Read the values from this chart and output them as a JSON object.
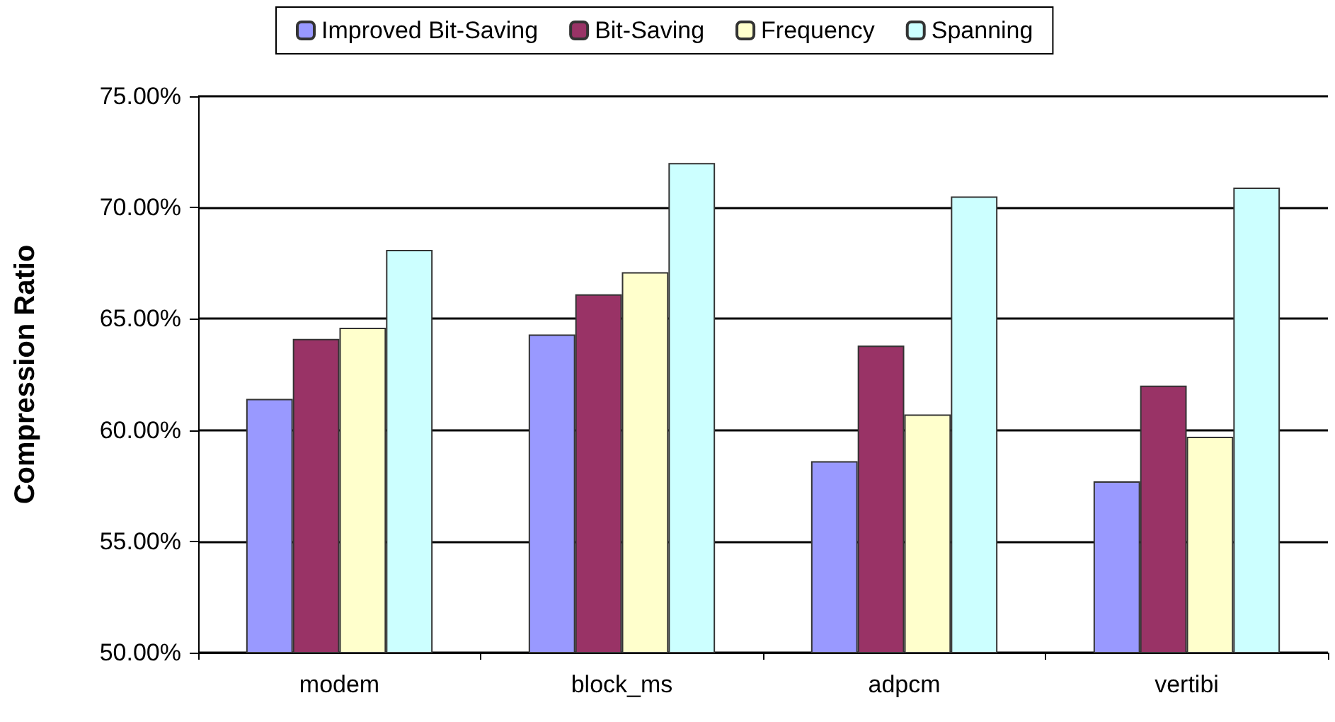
{
  "chart_data": {
    "type": "bar",
    "ylabel": "Compression Ratio",
    "categories": [
      "modem",
      "block_ms",
      "adpcm",
      "vertibi"
    ],
    "series": [
      {
        "name": "Improved Bit-Saving",
        "color": "#9999ff",
        "values": [
          61.4,
          64.3,
          58.6,
          57.7
        ]
      },
      {
        "name": "Bit-Saving",
        "color": "#993366",
        "values": [
          64.1,
          66.1,
          63.8,
          62.0
        ]
      },
      {
        "name": "Frequency",
        "color": "#ffffcc",
        "values": [
          64.6,
          67.1,
          60.7,
          59.7
        ]
      },
      {
        "name": "Spanning",
        "color": "#ccffff",
        "values": [
          68.1,
          72.0,
          70.5,
          70.9
        ]
      }
    ],
    "ylim": [
      50,
      75
    ],
    "yticks": [
      {
        "value": 50,
        "label": "50.00%"
      },
      {
        "value": 55,
        "label": "55.00%"
      },
      {
        "value": 60,
        "label": "60.00%"
      },
      {
        "value": 65,
        "label": "65.00%"
      },
      {
        "value": 70,
        "label": "70.00%"
      },
      {
        "value": 75,
        "label": "75.00%"
      }
    ],
    "grid": "y",
    "legend": "top"
  }
}
